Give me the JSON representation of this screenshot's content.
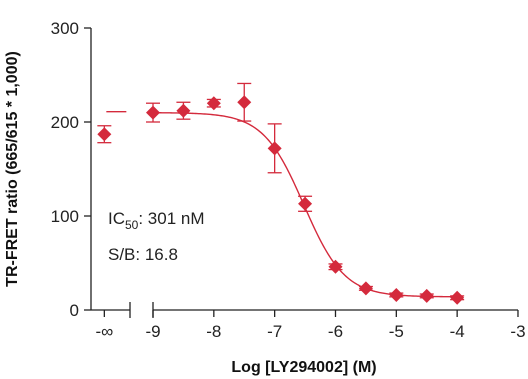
{
  "chart_data": {
    "type": "scatter",
    "ylabel": "TR-FRET ratio (665/615 * 1,000)",
    "xlabel": "Log [LY294002] (M)",
    "ylim": [
      0,
      300
    ],
    "xlim": [
      -10.2,
      -3
    ],
    "y_ticks": [
      0,
      100,
      200,
      300
    ],
    "x_ticks": [
      {
        "value": -9,
        "label": "-9"
      },
      {
        "value": -8,
        "label": "-8"
      },
      {
        "value": -7,
        "label": "-7"
      },
      {
        "value": -6,
        "label": "-6"
      },
      {
        "value": -5,
        "label": "-5"
      },
      {
        "value": -4,
        "label": "-4"
      },
      {
        "value": -3,
        "label": "-3"
      }
    ],
    "x_break_label": "-∞",
    "x_break_position": -9.8,
    "colors": {
      "series": "#d42a3c",
      "axis": "#222222"
    },
    "points": [
      {
        "x": -9.8,
        "y": 187,
        "err": 9
      },
      {
        "x": -9.0,
        "y": 210,
        "err": 10
      },
      {
        "x": -8.5,
        "y": 212,
        "err": 9
      },
      {
        "x": -8.0,
        "y": 220,
        "err": 4
      },
      {
        "x": -7.5,
        "y": 221,
        "err": 20
      },
      {
        "x": -7.0,
        "y": 172,
        "err": 26
      },
      {
        "x": -6.5,
        "y": 113,
        "err": 8
      },
      {
        "x": -6.0,
        "y": 46,
        "err": 3
      },
      {
        "x": -5.5,
        "y": 23,
        "err": 2
      },
      {
        "x": -5.0,
        "y": 16,
        "err": 2
      },
      {
        "x": -4.5,
        "y": 15,
        "err": 2
      },
      {
        "x": -4.0,
        "y": 13,
        "err": 2
      }
    ],
    "baseline_marker": {
      "x": -9.8,
      "y": 211
    },
    "fit": {
      "top": 210,
      "bottom": 14,
      "logIC50": -6.521,
      "hill": -1.3,
      "x_start": -9.0,
      "x_end": -4.0
    },
    "annotations": {
      "ic50_main": "IC",
      "ic50_sub": "50",
      "ic50_value": ": 301 nM",
      "sb": "S/B: 16.8"
    }
  }
}
